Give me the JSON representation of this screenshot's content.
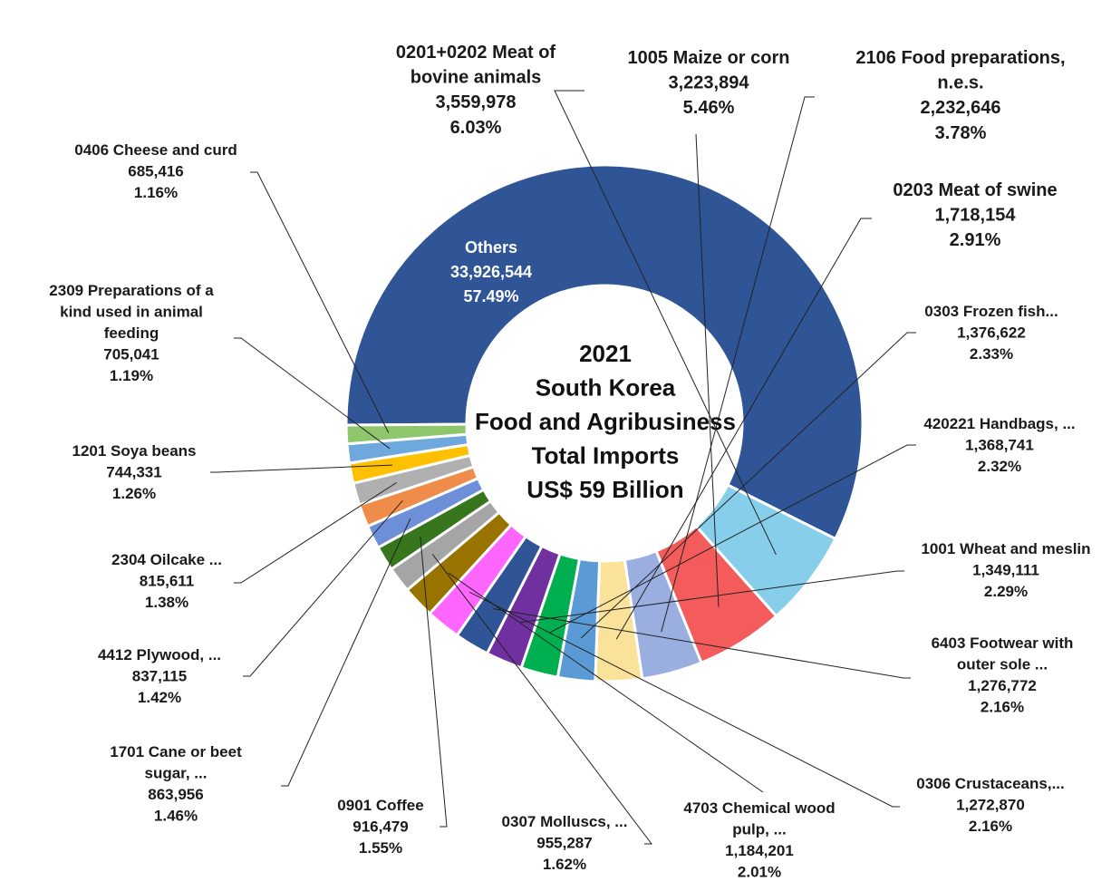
{
  "chart_data": {
    "type": "pie",
    "donut": true,
    "center_lines": [
      "2021",
      "South Korea",
      "Food and Agribusiness",
      "Total Imports",
      "US$ 59 Billion"
    ],
    "slices": [
      {
        "name": "Others",
        "value": 33926544,
        "value_label": "33,926,544",
        "pct_label": "57.49%",
        "color": "#2f5597"
      },
      {
        "name": "0201+0202 Meat of bovine animals",
        "value": 3559978,
        "value_label": "3,559,978",
        "pct_label": "6.03%",
        "color": "#87ceeb"
      },
      {
        "name": "1005 Maize or corn",
        "value": 3223894,
        "value_label": "3,223,894",
        "pct_label": "5.46%",
        "color": "#f45b5b"
      },
      {
        "name": "2106 Food preparations, n.e.s.",
        "value": 2232646,
        "value_label": "2,232,646",
        "pct_label": "3.78%",
        "color": "#9aaee0"
      },
      {
        "name": "0203 Meat of swine",
        "value": 1718154,
        "value_label": "1,718,154",
        "pct_label": "2.91%",
        "color": "#fbe29a"
      },
      {
        "name": "0303 Frozen fish...",
        "value": 1376622,
        "value_label": "1,376,622",
        "pct_label": "2.33%",
        "color": "#5b9bd5"
      },
      {
        "name": "420221 Handbags, ...",
        "value": 1368741,
        "value_label": "1,368,741",
        "pct_label": "2.32%",
        "color": "#00b050"
      },
      {
        "name": "1001 Wheat and meslin",
        "value": 1349111,
        "value_label": "1,349,111",
        "pct_label": "2.29%",
        "color": "#7030a0"
      },
      {
        "name": "6403 Footwear with outer sole ...",
        "value": 1276772,
        "value_label": "1,276,772",
        "pct_label": "2.16%",
        "color": "#2f5597"
      },
      {
        "name": "0306 Crustaceans,...",
        "value": 1272870,
        "value_label": "1,272,870",
        "pct_label": "2.16%",
        "color": "#ff66ff"
      },
      {
        "name": "4703 Chemical wood pulp, ...",
        "value": 1184201,
        "value_label": "1,184,201",
        "pct_label": "2.01%",
        "color": "#997300"
      },
      {
        "name": "0307 Molluscs, ...",
        "value": 955287,
        "value_label": "955,287",
        "pct_label": "1.62%",
        "color": "#a5a5a5"
      },
      {
        "name": "0901 Coffee",
        "value": 916479,
        "value_label": "916,479",
        "pct_label": "1.55%",
        "color": "#38761d"
      },
      {
        "name": "1701 Cane or beet sugar, ...",
        "value": 863956,
        "value_label": "863,956",
        "pct_label": "1.46%",
        "color": "#6d8fd8"
      },
      {
        "name": "4412 Plywood, ...",
        "value": 837115,
        "value_label": "837,115",
        "pct_label": "1.42%",
        "color": "#f08c4a"
      },
      {
        "name": "2304 Oilcake ...",
        "value": 815611,
        "value_label": "815,611",
        "pct_label": "1.38%",
        "color": "#b0b0b0"
      },
      {
        "name": "1201 Soya beans",
        "value": 744331,
        "value_label": "744,331",
        "pct_label": "1.26%",
        "color": "#ffc000"
      },
      {
        "name": "2309 Preparations of a kind used in animal feeding",
        "value": 705041,
        "value_label": "705,041",
        "pct_label": "1.19%",
        "color": "#6fa8dc"
      },
      {
        "name": "0406 Cheese and curd",
        "value": 685416,
        "value_label": "685,416",
        "pct_label": "1.16%",
        "color": "#8fc66b"
      }
    ]
  }
}
